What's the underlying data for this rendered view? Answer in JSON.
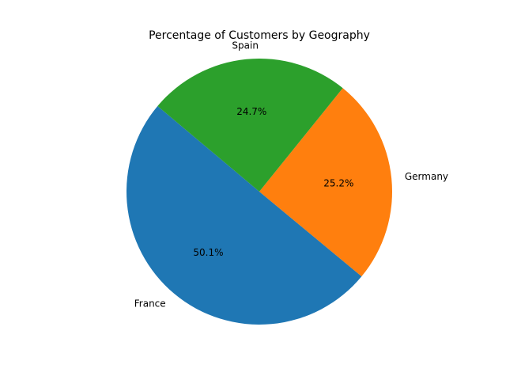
{
  "chart_data": {
    "type": "pie",
    "title": "Percentage of Customers by Geography",
    "categories": [
      "France",
      "Germany",
      "Spain"
    ],
    "values": [
      50.1,
      25.2,
      24.7
    ],
    "value_labels": [
      "50.1%",
      "25.2%",
      "24.7%"
    ],
    "colors": [
      "#1f77b4",
      "#ff7f0e",
      "#2ca02c"
    ],
    "start_angle_deg": 140,
    "direction": "counterclockwise"
  }
}
